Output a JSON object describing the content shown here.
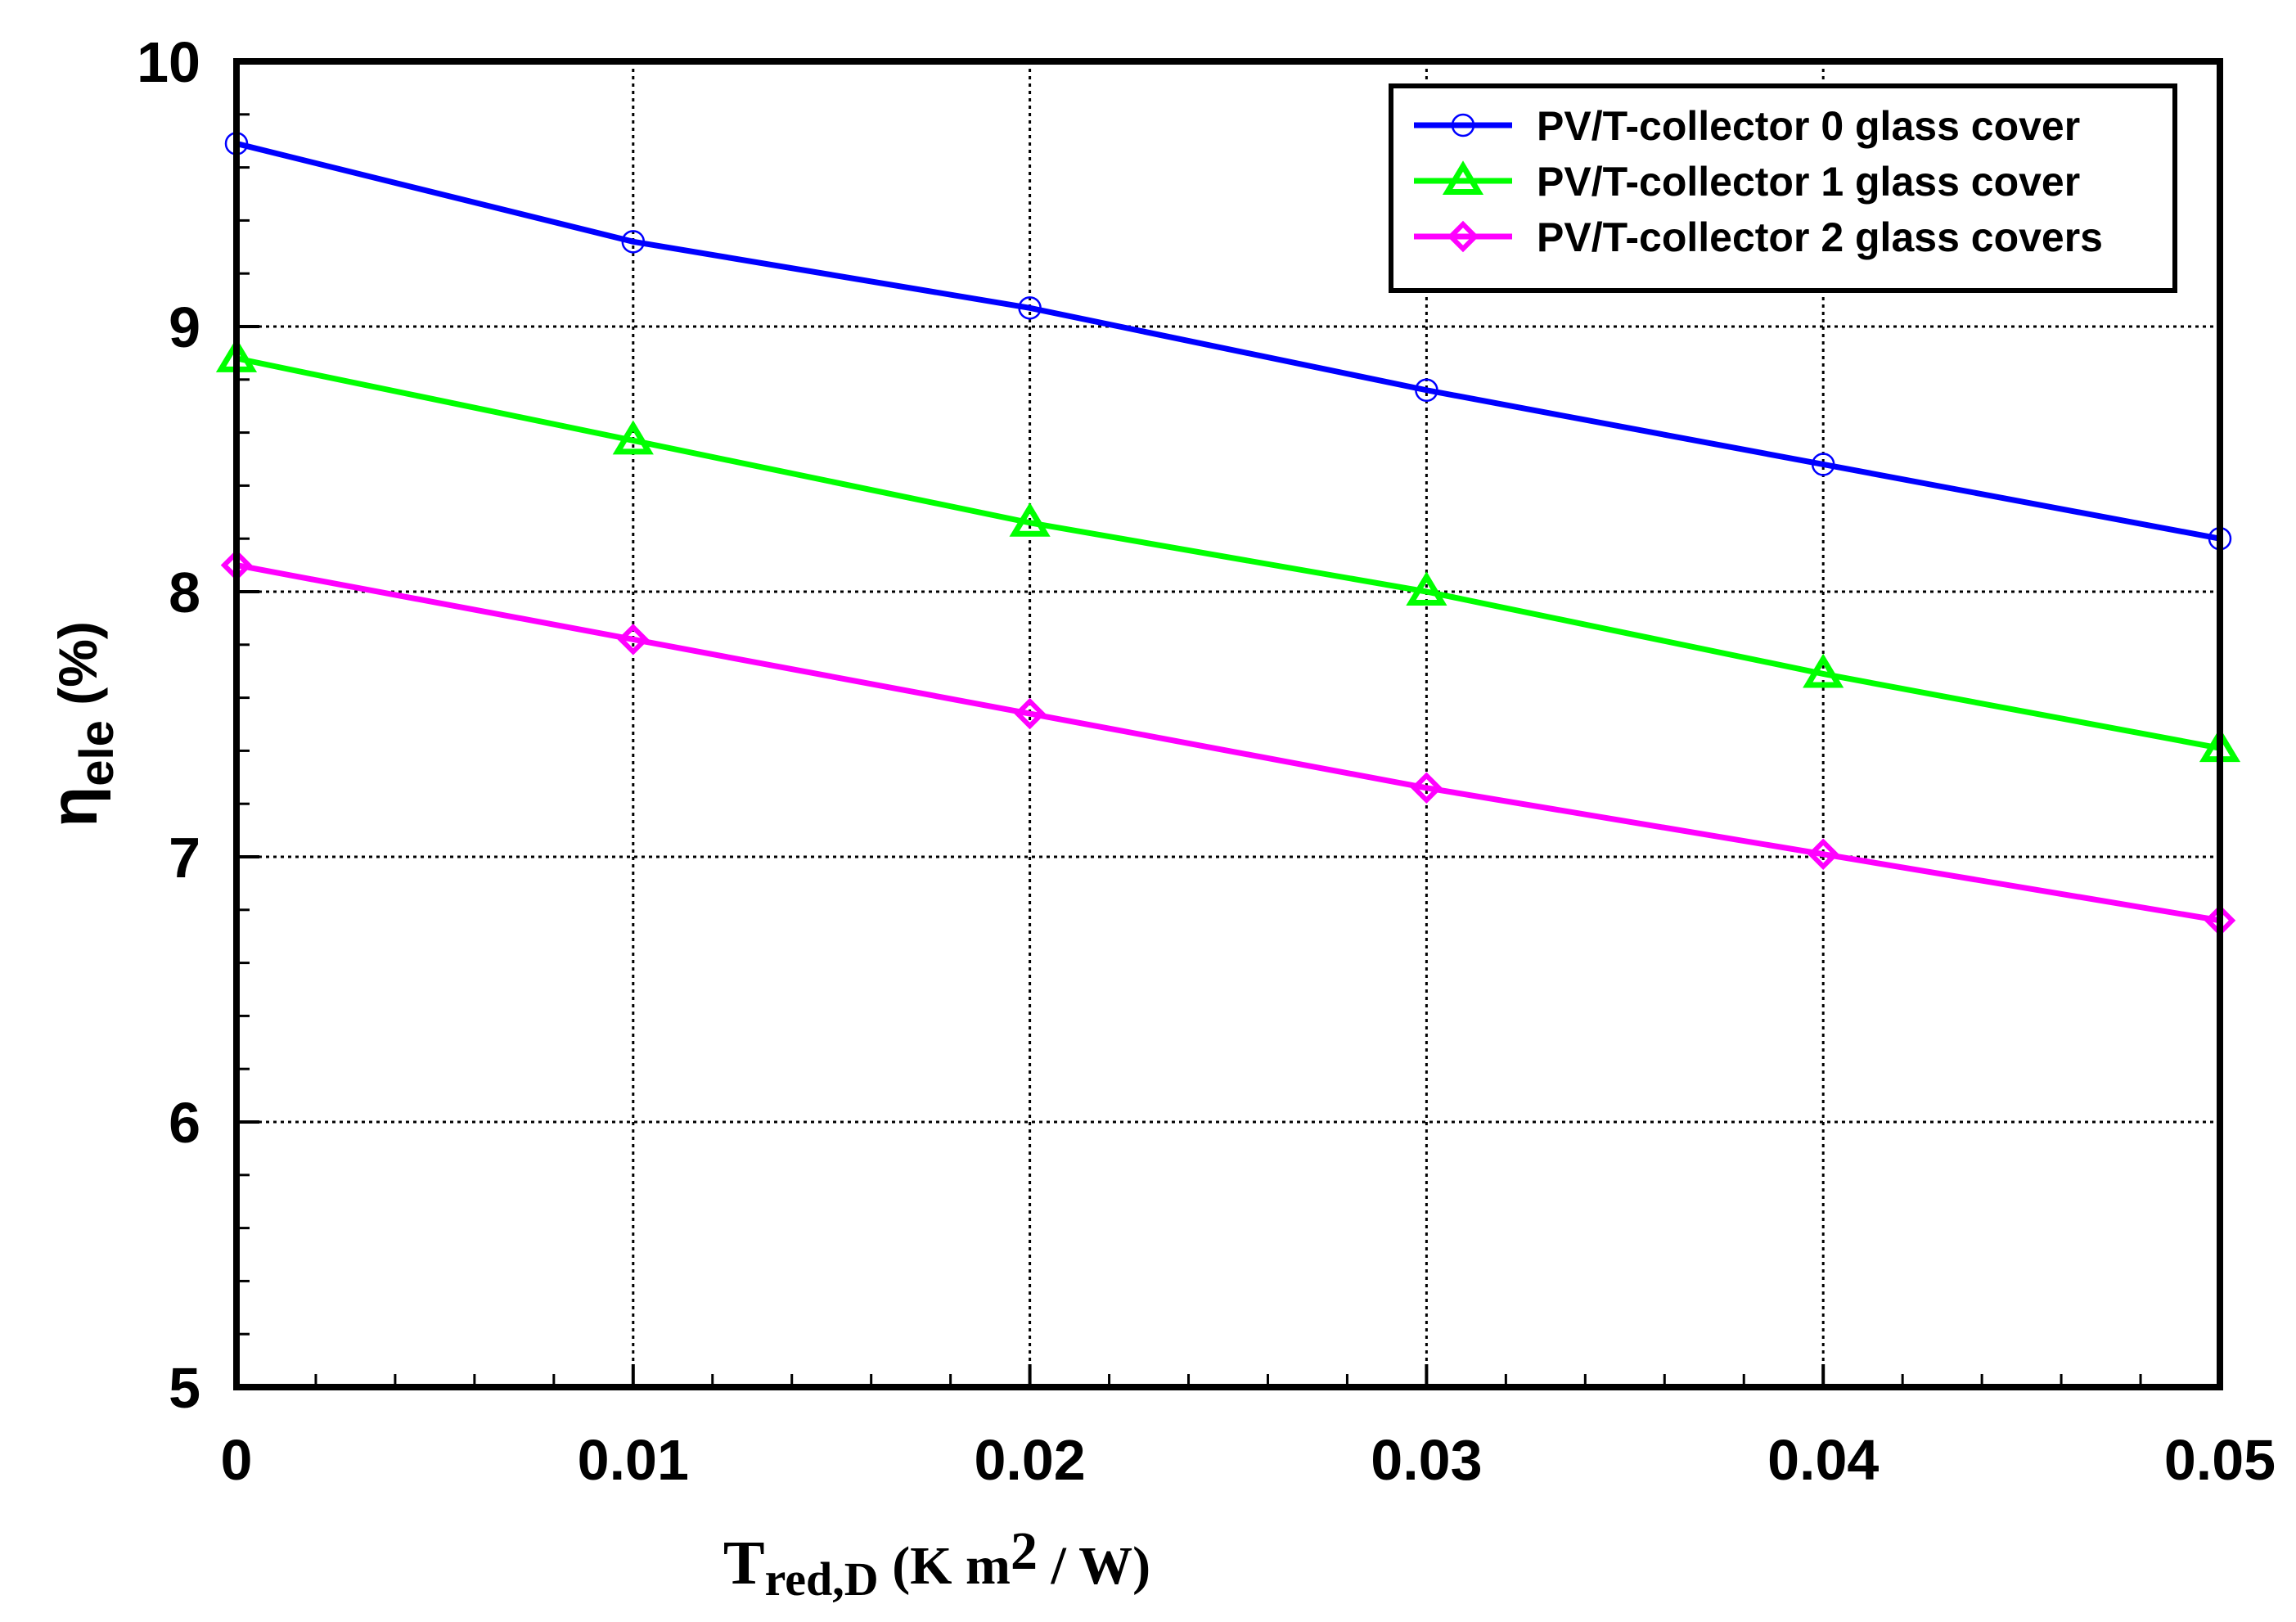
{
  "chart_data": {
    "type": "line",
    "x": [
      0,
      0.01,
      0.02,
      0.03,
      0.04,
      0.05
    ],
    "x_tick_labels": [
      "0",
      "0.01",
      "0.02",
      "0.03",
      "0.04",
      "0.05"
    ],
    "y_tick_labels": [
      "5",
      "6",
      "7",
      "8",
      "9",
      "10"
    ],
    "xlim": [
      0,
      0.05
    ],
    "ylim": [
      5,
      10
    ],
    "grid": true,
    "legend_position": "top-right",
    "xlabel": {
      "main": "T",
      "sub": "red,D",
      "units_pre": " (K m",
      "sup": "2",
      "units_post": " / W)"
    },
    "ylabel": {
      "main": "η",
      "sub": "ele",
      "units": " (%)"
    },
    "series": [
      {
        "name": "PV/T-collector 0 glass cover",
        "color": "#0000ff",
        "marker": "circle",
        "values": [
          9.69,
          9.32,
          9.07,
          8.76,
          8.48,
          8.2
        ]
      },
      {
        "name": "PV/T-collector 1 glass cover",
        "color": "#00ff00",
        "marker": "triangle",
        "values": [
          8.88,
          8.57,
          8.26,
          8.0,
          7.69,
          7.41
        ]
      },
      {
        "name": "PV/T-collector 2 glass covers",
        "color": "#ff00ff",
        "marker": "diamond",
        "values": [
          8.1,
          7.82,
          7.54,
          7.26,
          7.01,
          6.76
        ]
      }
    ]
  }
}
